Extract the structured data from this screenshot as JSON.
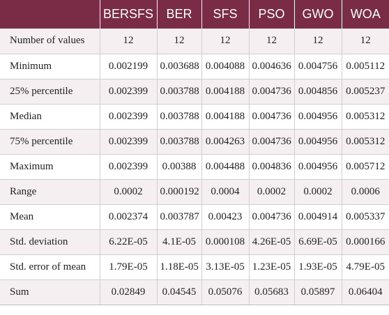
{
  "table": {
    "header": [
      "",
      "BERSFS",
      "BER",
      "SFS",
      "PSO",
      "GWO",
      "WOA"
    ],
    "rows": [
      [
        "Number of values",
        "12",
        "12",
        "12",
        "12",
        "12",
        "12"
      ],
      [
        "Minimum",
        "0.002199",
        "0.003688",
        "0.004088",
        "0.004636",
        "0.004756",
        "0.005112"
      ],
      [
        "25% percentile",
        "0.002399",
        "0.003788",
        "0.004188",
        "0.004736",
        "0.004856",
        "0.005237"
      ],
      [
        "Median",
        "0.002399",
        "0.003788",
        "0.004188",
        "0.004736",
        "0.004956",
        "0.005312"
      ],
      [
        "75% percentile",
        "0.002399",
        "0.003788",
        "0.004263",
        "0.004736",
        "0.004956",
        "0.005312"
      ],
      [
        "Maximum",
        "0.002399",
        "0.00388",
        "0.004488",
        "0.004836",
        "0.004956",
        "0.005712"
      ],
      [
        "Range",
        "0.0002",
        "0.000192",
        "0.0004",
        "0.0002",
        "0.0002",
        "0.0006"
      ],
      [
        "Mean",
        "0.002374",
        "0.003787",
        "0.00423",
        "0.004736",
        "0.004914",
        "0.005337"
      ],
      [
        "Std. deviation",
        "6.22E-05",
        "4.1E-05",
        "0.000108",
        "4.26E-05",
        "6.69E-05",
        "0.000166"
      ],
      [
        "Std. error of mean",
        "1.79E-05",
        "1.18E-05",
        "3.13E-05",
        "1.23E-05",
        "1.93E-05",
        "4.79E-05"
      ],
      [
        "Sum",
        "0.02849",
        "0.04545",
        "0.05076",
        "0.05683",
        "0.05897",
        "0.06404"
      ]
    ]
  },
  "colors": {
    "header_bg": "#7a2b46",
    "header_text": "#ffffff",
    "stripe": "#f6eff1"
  }
}
